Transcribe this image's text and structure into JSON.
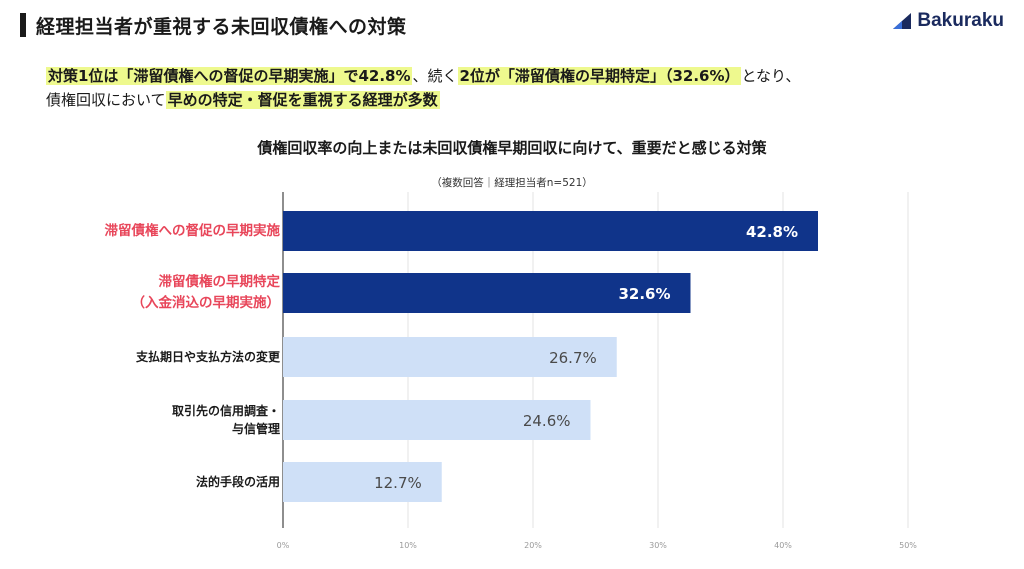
{
  "header": {
    "title": "経理担当者が重視する未回収債権への対策",
    "logo_text": "Bakuraku",
    "brand_color": "#1a2a5e"
  },
  "summary": {
    "line1_part1": "対策1位は「滞留債権への督促の早期実施」で42.8%",
    "line1_part2": "、続く",
    "line1_part3": "2位が「滞留債権の早期特定」（32.6%）",
    "line1_part4": "となり、",
    "line2_part1": "債権回収において",
    "line2_part2": "早めの特定・督促を重視する経理が多数"
  },
  "chart_data": {
    "type": "bar",
    "orientation": "horizontal",
    "title": "債権回収率の向上または未回収債権早期回収に向けて、重要だと感じる対策",
    "note": "（複数回答｜経理担当者n=521）",
    "categories": [
      "滞留債権への督促の早期実施",
      "滞留債権の早期特定\n（入金消込の早期実施）",
      "支払期日や支払方法の変更",
      "取引先の信用調査・\n与信管理",
      "法的手段の活用"
    ],
    "values": [
      42.8,
      32.6,
      26.7,
      24.6,
      12.7
    ],
    "value_labels": [
      "42.8%",
      "32.6%",
      "26.7%",
      "24.6%",
      "12.7%"
    ],
    "xlim": [
      0,
      50
    ],
    "xticks": [
      "0%",
      "10%",
      "20%",
      "30%",
      "40%",
      "50%"
    ],
    "grid": true,
    "colors": {
      "top2_bar": "#10348a",
      "other_bar": "#cfe0f7",
      "top2_label": "#e8465a",
      "top2_value_text": "#ffffff",
      "other_value_text": "#4a4a4a"
    }
  }
}
